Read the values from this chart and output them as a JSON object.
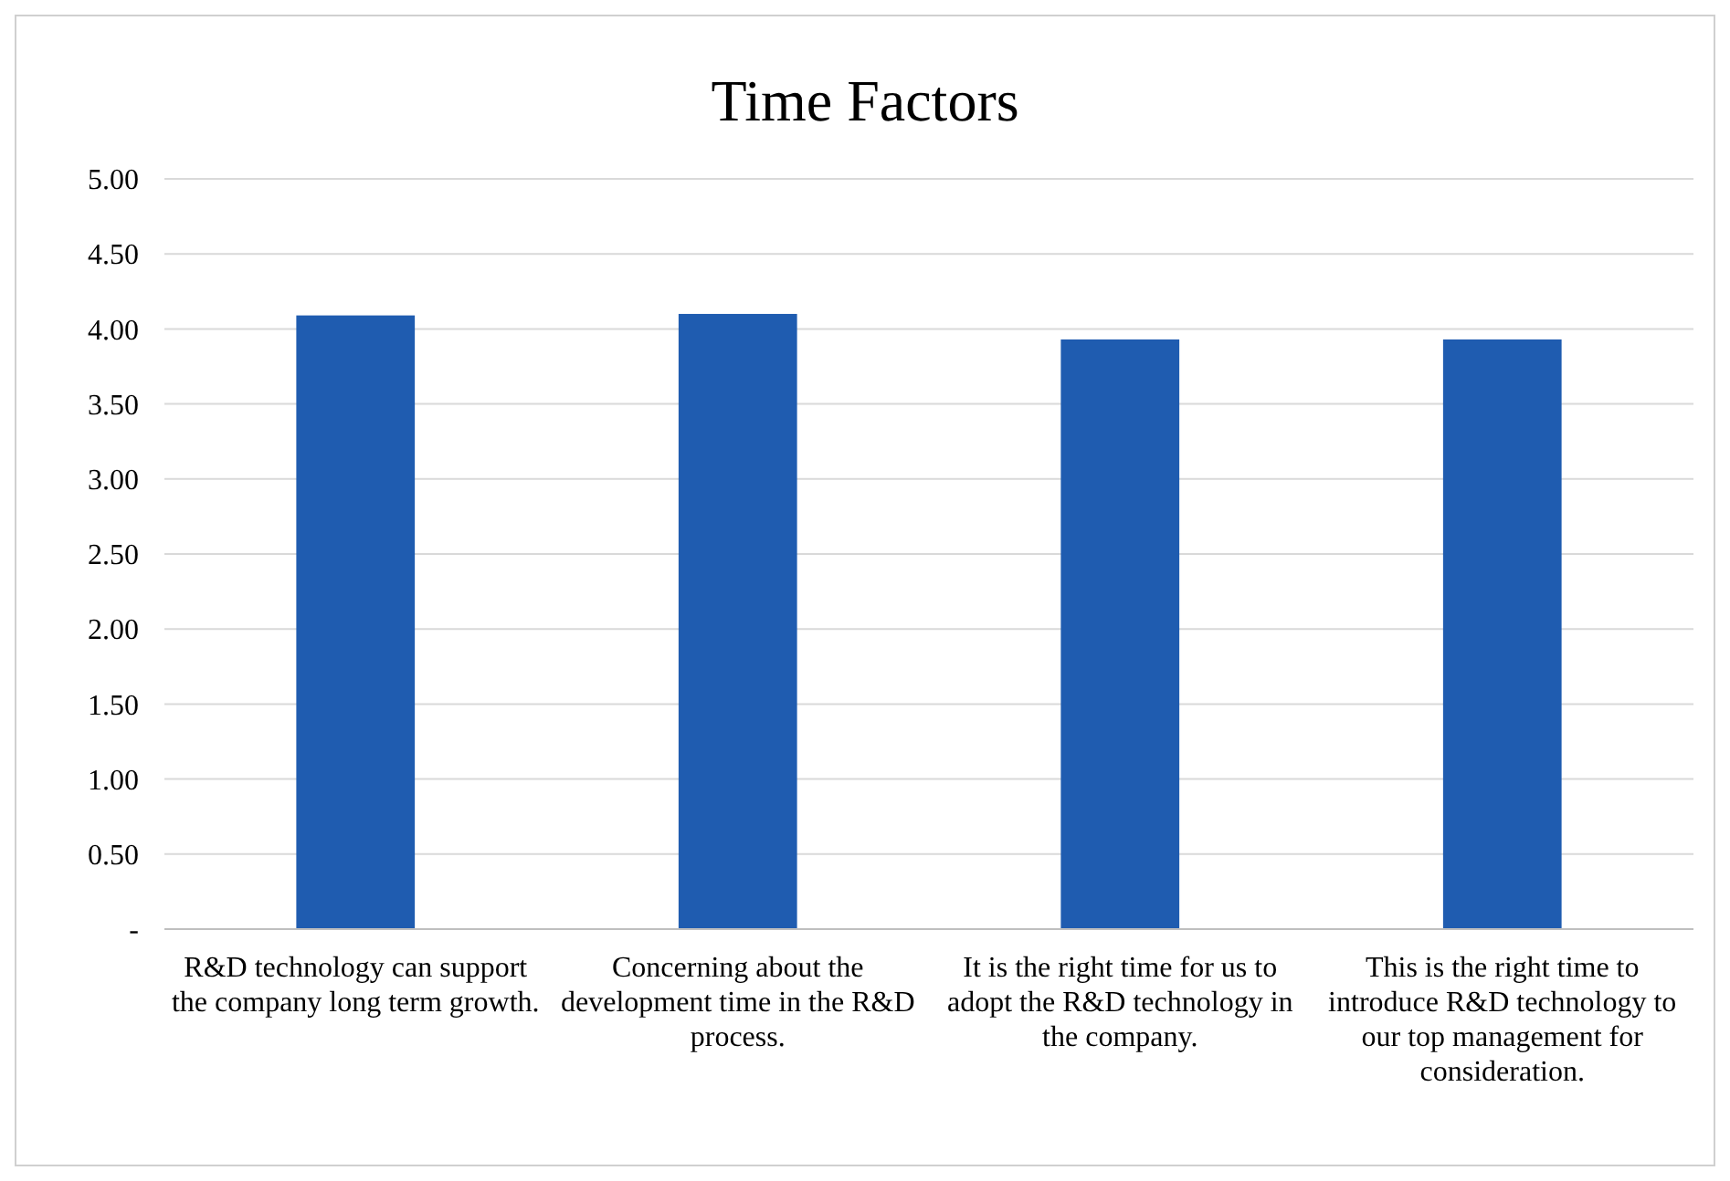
{
  "chart_data": {
    "type": "bar",
    "title": "Time Factors",
    "categories": [
      "R&D technology can support the company long term growth.",
      "Concerning about the development time in the R&D process.",
      "It is the right time for us to adopt the R&D technology in the company.",
      "This is the right time to introduce R&D technology to our top management for consideration."
    ],
    "values": [
      4.09,
      4.1,
      3.93,
      3.93
    ],
    "color": "#1f5cb0",
    "ylim": [
      0,
      5
    ],
    "yticks": [
      {
        "value": 0,
        "label": "-"
      },
      {
        "value": 0.5,
        "label": "0.50"
      },
      {
        "value": 1,
        "label": "1.00"
      },
      {
        "value": 1.5,
        "label": "1.50"
      },
      {
        "value": 2,
        "label": "2.00"
      },
      {
        "value": 2.5,
        "label": "2.50"
      },
      {
        "value": 3,
        "label": "3.00"
      },
      {
        "value": 3.5,
        "label": "3.50"
      },
      {
        "value": 4,
        "label": "4.00"
      },
      {
        "value": 4.5,
        "label": "4.50"
      },
      {
        "value": 5,
        "label": "5.00"
      }
    ],
    "grid": "y"
  }
}
